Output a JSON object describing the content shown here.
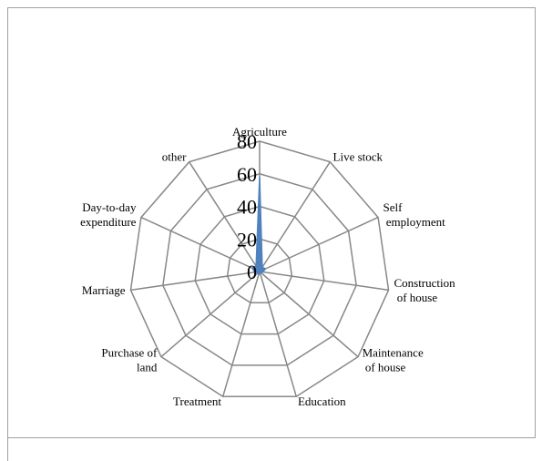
{
  "chart_data": {
    "type": "radar",
    "categories": [
      "Agriculture",
      "Live stock",
      "Self employment",
      "Construction of house",
      "Maintenance of house",
      "Education",
      "Treatment",
      "Purchase of land",
      "Marriage",
      "Day-to-day expenditure",
      "other"
    ],
    "values": [
      58,
      3,
      4,
      2,
      1,
      1,
      2,
      1,
      3,
      5,
      4
    ],
    "color": "#4f81bd",
    "ylim": [
      0,
      80
    ],
    "yticks": [
      0,
      20,
      40,
      60,
      80
    ],
    "grid": true
  }
}
